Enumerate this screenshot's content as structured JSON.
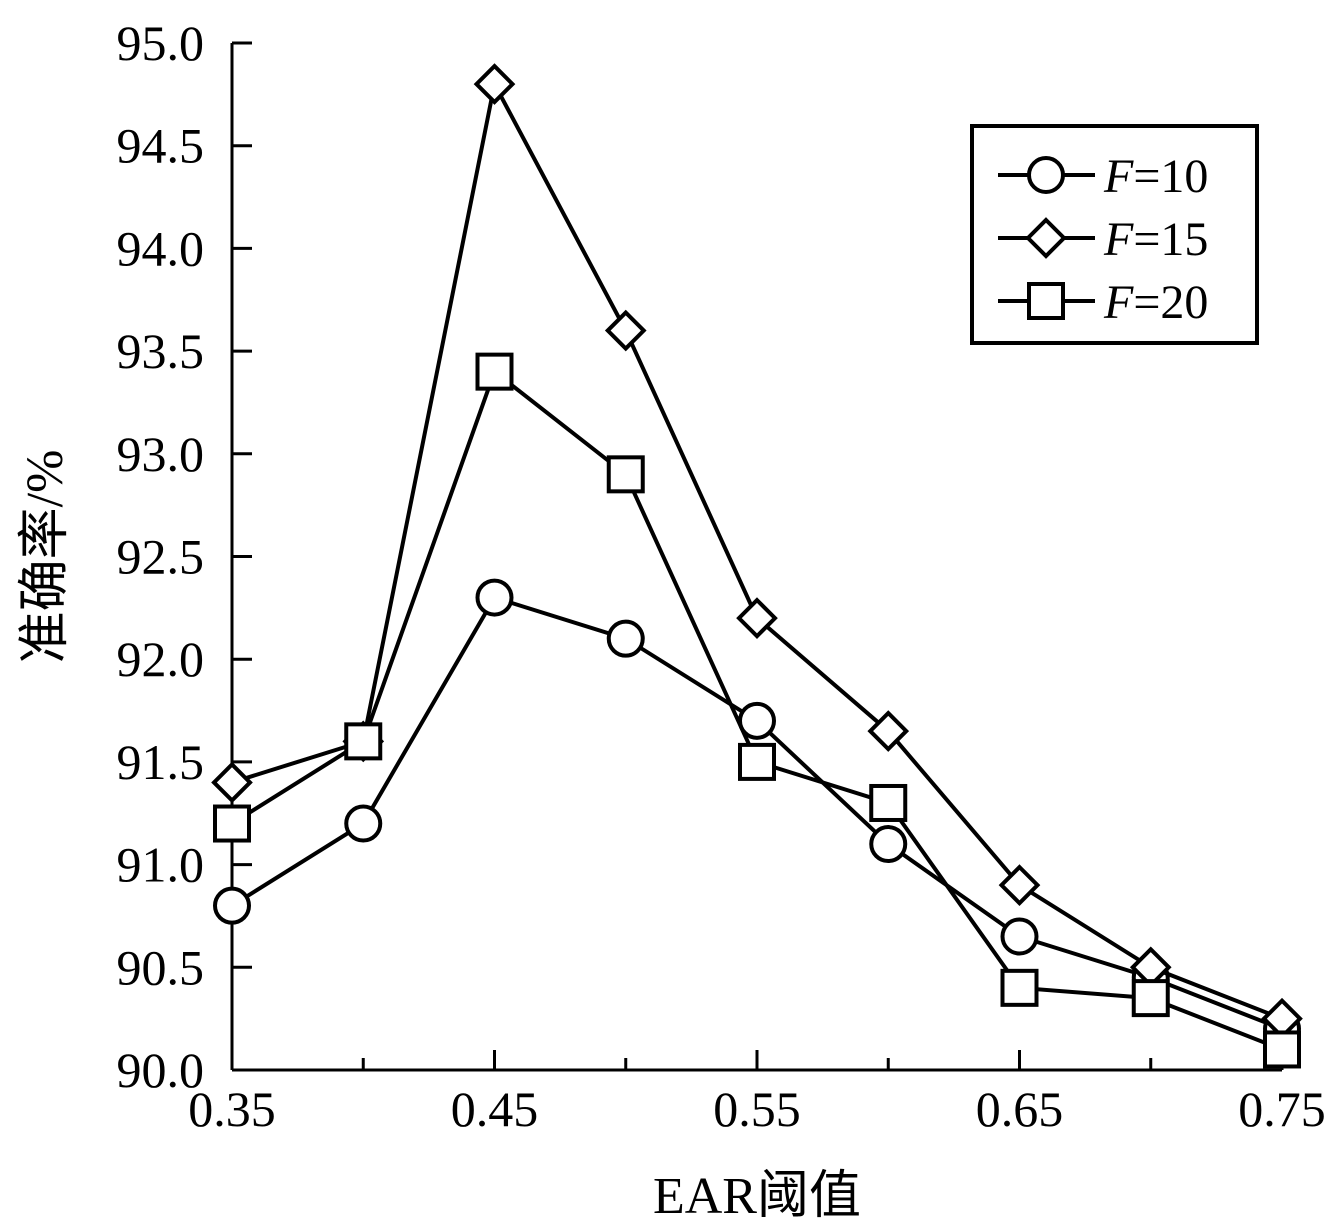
{
  "chart_data": {
    "type": "line",
    "xlabel": "EAR阈值",
    "ylabel": "准确率/%",
    "xlim": [
      0.35,
      0.75
    ],
    "ylim": [
      90.0,
      95.0
    ],
    "x_ticks": [
      "0.35",
      "0.45",
      "0.55",
      "0.65",
      "0.75"
    ],
    "y_ticks": [
      "90.0",
      "90.5",
      "91.0",
      "91.5",
      "92.0",
      "92.5",
      "93.0",
      "93.5",
      "94.0",
      "94.5",
      "95.0"
    ],
    "x": [
      0.35,
      0.4,
      0.45,
      0.5,
      0.55,
      0.6,
      0.65,
      0.7,
      0.75
    ],
    "series": [
      {
        "name": "F=10",
        "legend_var": "F",
        "legend_rest": "=10",
        "marker": "circle",
        "values": [
          90.8,
          91.2,
          92.3,
          92.1,
          91.7,
          91.1,
          90.65,
          90.45,
          90.2
        ]
      },
      {
        "name": "F=15",
        "legend_var": "F",
        "legend_rest": "=15",
        "marker": "diamond",
        "values": [
          91.4,
          91.6,
          94.8,
          93.6,
          92.2,
          91.65,
          90.9,
          90.5,
          90.25
        ]
      },
      {
        "name": "F=20",
        "legend_var": "F",
        "legend_rest": "=20",
        "marker": "square",
        "values": [
          91.2,
          91.6,
          93.4,
          92.9,
          91.5,
          91.3,
          90.4,
          90.35,
          90.1
        ]
      }
    ],
    "legend_position": "top-right",
    "grid": false
  }
}
